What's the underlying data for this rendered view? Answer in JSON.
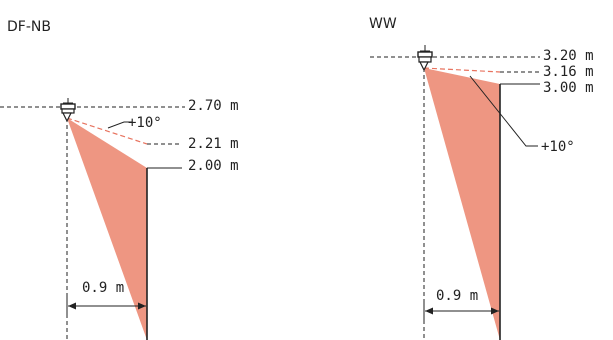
{
  "colors": {
    "cone": "#ee9682",
    "angle_line": "#e8735f",
    "ink": "#222222"
  },
  "panels": {
    "left": {
      "title": "DF-NB",
      "labels": {
        "h1": "2.70 m",
        "h2": "2.21 m",
        "h3": "2.00 m",
        "angle": "+10°",
        "distance": "0.9 m"
      },
      "icon": "sensor-icon"
    },
    "right": {
      "title": "WW",
      "labels": {
        "h1": "3.20 m",
        "h2": "3.16 m",
        "h3": "3.00 m",
        "angle": "+10°",
        "distance": "0.9 m"
      },
      "icon": "sensor-icon"
    }
  }
}
